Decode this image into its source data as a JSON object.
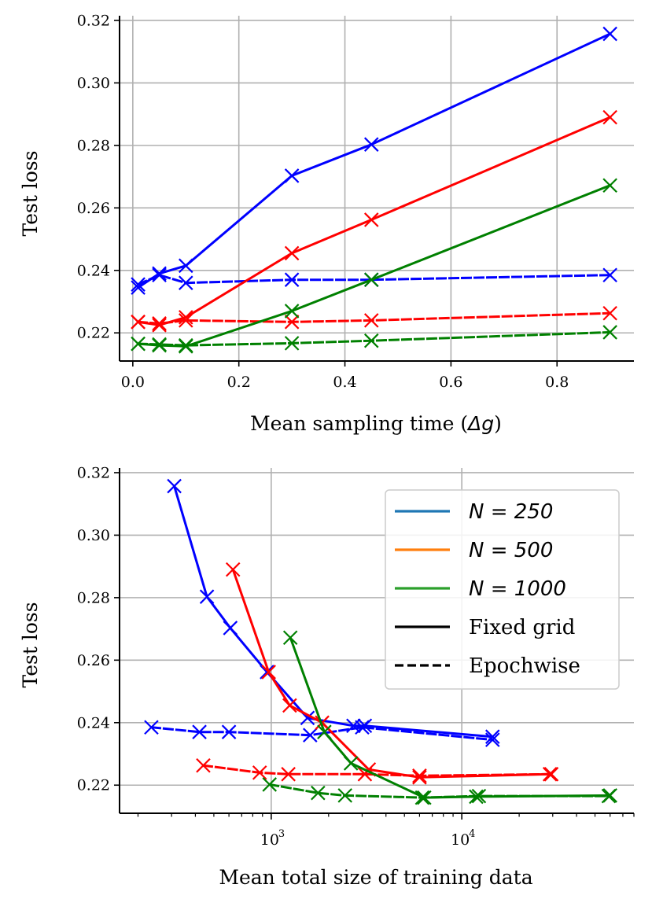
{
  "figure": {
    "top": {
      "xlabel_prefix": "Mean sampling time (",
      "xlabel_symbol": "Δg",
      "xlabel_suffix": ")",
      "ylabel": "Test loss"
    },
    "bottom": {
      "xlabel": "Mean total size of training data",
      "ylabel": "Test loss"
    },
    "legend": {
      "placement": "top-right of bottom panel",
      "entries": [
        {
          "label": "N = 250",
          "color": "#1f77b4",
          "style": "solid"
        },
        {
          "label": "N = 500",
          "color": "#ff7f0e",
          "style": "solid"
        },
        {
          "label": "N = 1000",
          "color": "#2ca02c",
          "style": "solid"
        },
        {
          "label": "Fixed grid",
          "color": "#000000",
          "style": "solid"
        },
        {
          "label": "Epochwise",
          "color": "#000000",
          "style": "dashed"
        }
      ]
    }
  },
  "chart_data": [
    {
      "type": "line",
      "xlabel": "Mean sampling time (Δg)",
      "ylabel": "Test loss",
      "xlim": [
        -0.025,
        0.945
      ],
      "ylim": [
        0.211,
        0.3215
      ],
      "xticks": [
        "0.0",
        "0.2",
        "0.4",
        "0.6",
        "0.8"
      ],
      "xtick_values": [
        0,
        0.2,
        0.4,
        0.6,
        0.8
      ],
      "yticks": [
        "0.22",
        "0.24",
        "0.26",
        "0.28",
        "0.30",
        "0.32"
      ],
      "ytick_values": [
        0.22,
        0.24,
        0.26,
        0.28,
        0.3,
        0.32
      ],
      "grid": true,
      "marker": "x",
      "series": [
        {
          "color": "blue",
          "style": "solid",
          "x": [
            0.01,
            0.05,
            0.1,
            0.3,
            0.45,
            0.9
          ],
          "y": [
            0.2345,
            0.239,
            0.2415,
            0.2703,
            0.2803,
            0.3157
          ]
        },
        {
          "color": "blue",
          "style": "dashed",
          "x": [
            0.01,
            0.05,
            0.1,
            0.3,
            0.45,
            0.9
          ],
          "y": [
            0.2355,
            0.2385,
            0.236,
            0.237,
            0.237,
            0.2385
          ]
        },
        {
          "color": "red",
          "style": "solid",
          "x": [
            0.01,
            0.05,
            0.1,
            0.3,
            0.45,
            0.9
          ],
          "y": [
            0.2235,
            0.2225,
            0.225,
            0.2455,
            0.2562,
            0.289
          ]
        },
        {
          "color": "red",
          "style": "dashed",
          "x": [
            0.01,
            0.05,
            0.1,
            0.3,
            0.45,
            0.9
          ],
          "y": [
            0.2235,
            0.223,
            0.224,
            0.2235,
            0.224,
            0.2263
          ]
        },
        {
          "color": "green",
          "style": "solid",
          "x": [
            0.01,
            0.05,
            0.1,
            0.3,
            0.45,
            0.9
          ],
          "y": [
            0.2165,
            0.216,
            0.2157,
            0.227,
            0.237,
            0.2672
          ]
        },
        {
          "color": "green",
          "style": "dashed",
          "x": [
            0.01,
            0.05,
            0.1,
            0.3,
            0.45,
            0.9
          ],
          "y": [
            0.2165,
            0.2163,
            0.216,
            0.2167,
            0.2175,
            0.2202
          ]
        }
      ]
    },
    {
      "type": "line",
      "xscale": "log",
      "xlabel": "Mean total size of training data",
      "ylabel": "Test loss",
      "xlim": [
        160,
        80000
      ],
      "ylim": [
        0.211,
        0.3215
      ],
      "xticks_major": [
        1000,
        10000
      ],
      "xticks_major_labels": [
        "10",
        "10"
      ],
      "xticks_major_exponents": [
        "3",
        "4"
      ],
      "yticks": [
        "0.22",
        "0.24",
        "0.26",
        "0.28",
        "0.30",
        "0.32"
      ],
      "ytick_values": [
        0.22,
        0.24,
        0.26,
        0.28,
        0.3,
        0.32
      ],
      "grid": true,
      "marker": "x",
      "series": [
        {
          "color": "blue",
          "style": "solid",
          "x": [
            310,
            460,
            610,
            950,
            1550,
            2700,
            3100,
            14500
          ],
          "y": [
            0.3157,
            0.2803,
            0.2703,
            0.2562,
            0.2415,
            0.239,
            0.239,
            0.2355
          ]
        },
        {
          "color": "blue",
          "style": "dashed",
          "x": [
            235,
            420,
            600,
            1600,
            3000,
            14500
          ],
          "y": [
            0.2385,
            0.237,
            0.237,
            0.236,
            0.2385,
            0.2345
          ]
        },
        {
          "color": "red",
          "style": "solid",
          "x": [
            630,
            970,
            1250,
            1850,
            3250,
            6000,
            29000
          ],
          "y": [
            0.289,
            0.2562,
            0.2455,
            0.24,
            0.225,
            0.2225,
            0.2235
          ]
        },
        {
          "color": "red",
          "style": "dashed",
          "x": [
            440,
            870,
            1230,
            3100,
            6000,
            29500
          ],
          "y": [
            0.2263,
            0.224,
            0.2235,
            0.2235,
            0.223,
            0.2235
          ]
        },
        {
          "color": "green",
          "style": "solid",
          "x": [
            1260,
            1900,
            2620,
            6350,
            11900,
            60000
          ],
          "y": [
            0.2672,
            0.237,
            0.227,
            0.216,
            0.2163,
            0.2167
          ]
        },
        {
          "color": "green",
          "style": "dashed",
          "x": [
            980,
            1760,
            2440,
            6200,
            12300,
            59000
          ],
          "y": [
            0.2202,
            0.2175,
            0.2167,
            0.216,
            0.2165,
            0.2165
          ]
        }
      ]
    }
  ]
}
